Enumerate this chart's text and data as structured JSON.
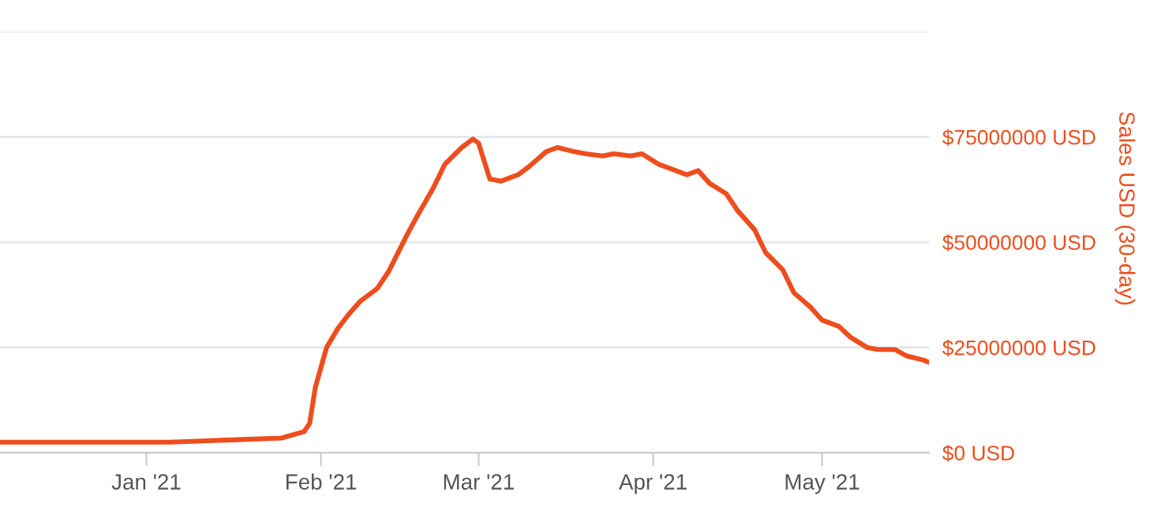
{
  "chart_data": {
    "type": "line",
    "ylabel": "Sales USD (30-day)",
    "x": [
      "2020-12-06",
      "2020-12-16",
      "2020-12-26",
      "2021-01-05",
      "2021-01-15",
      "2021-01-25",
      "2021-01-29",
      "2021-01-30",
      "2021-01-31",
      "2021-02-02",
      "2021-02-04",
      "2021-02-06",
      "2021-02-08",
      "2021-02-11",
      "2021-02-13",
      "2021-02-16",
      "2021-02-18",
      "2021-02-21",
      "2021-02-23",
      "2021-02-26",
      "2021-02-28",
      "2021-03-01",
      "2021-03-03",
      "2021-03-05",
      "2021-03-08",
      "2021-03-10",
      "2021-03-13",
      "2021-03-15",
      "2021-03-18",
      "2021-03-20",
      "2021-03-23",
      "2021-03-25",
      "2021-03-28",
      "2021-03-30",
      "2021-04-02",
      "2021-04-04",
      "2021-04-07",
      "2021-04-09",
      "2021-04-11",
      "2021-04-14",
      "2021-04-16",
      "2021-04-19",
      "2021-04-21",
      "2021-04-24",
      "2021-04-26",
      "2021-04-29",
      "2021-05-01",
      "2021-05-04",
      "2021-05-06",
      "2021-05-09",
      "2021-05-11",
      "2021-05-14",
      "2021-05-16",
      "2021-05-19",
      "2021-05-20"
    ],
    "series": [
      {
        "color": "#ee4d1d",
        "values": [
          2500000,
          2500000,
          2500000,
          2500000,
          3000000,
          3500000,
          5000000,
          7000000,
          15500000,
          25000000,
          29500000,
          33000000,
          36000000,
          39000000,
          43000000,
          51000000,
          56000000,
          63000000,
          68500000,
          72500000,
          74500000,
          73500000,
          65000000,
          64500000,
          66000000,
          68000000,
          71500000,
          72500000,
          71500000,
          71000000,
          70500000,
          71000000,
          70500000,
          71000000,
          68500000,
          67500000,
          66000000,
          67000000,
          64000000,
          61500000,
          57500000,
          53000000,
          47500000,
          43500000,
          38000000,
          34500000,
          31500000,
          30000000,
          27500000,
          25000000,
          24500000,
          24500000,
          23000000,
          22000000,
          21500000
        ]
      }
    ],
    "xlim": [
      "2020-12-06",
      "2021-05-20"
    ],
    "xticks": [
      {
        "value": "2021-01-01",
        "label": "Jan '21"
      },
      {
        "value": "2021-02-01",
        "label": "Feb '21"
      },
      {
        "value": "2021-03-01",
        "label": "Mar '21"
      },
      {
        "value": "2021-04-01",
        "label": "Apr '21"
      },
      {
        "value": "2021-05-01",
        "label": "May '21"
      }
    ],
    "ylim": [
      0,
      100000000
    ],
    "yticks": [
      {
        "value": 0,
        "label": "$0 USD"
      },
      {
        "value": 25000000,
        "label": "$25000000 USD"
      },
      {
        "value": 50000000,
        "label": "$50000000 USD"
      },
      {
        "value": 75000000,
        "label": "$75000000 USD"
      },
      {
        "value": 100000000,
        "label": null
      }
    ],
    "grid": "y",
    "legend": false,
    "marker": "none",
    "line_style": "solid"
  }
}
